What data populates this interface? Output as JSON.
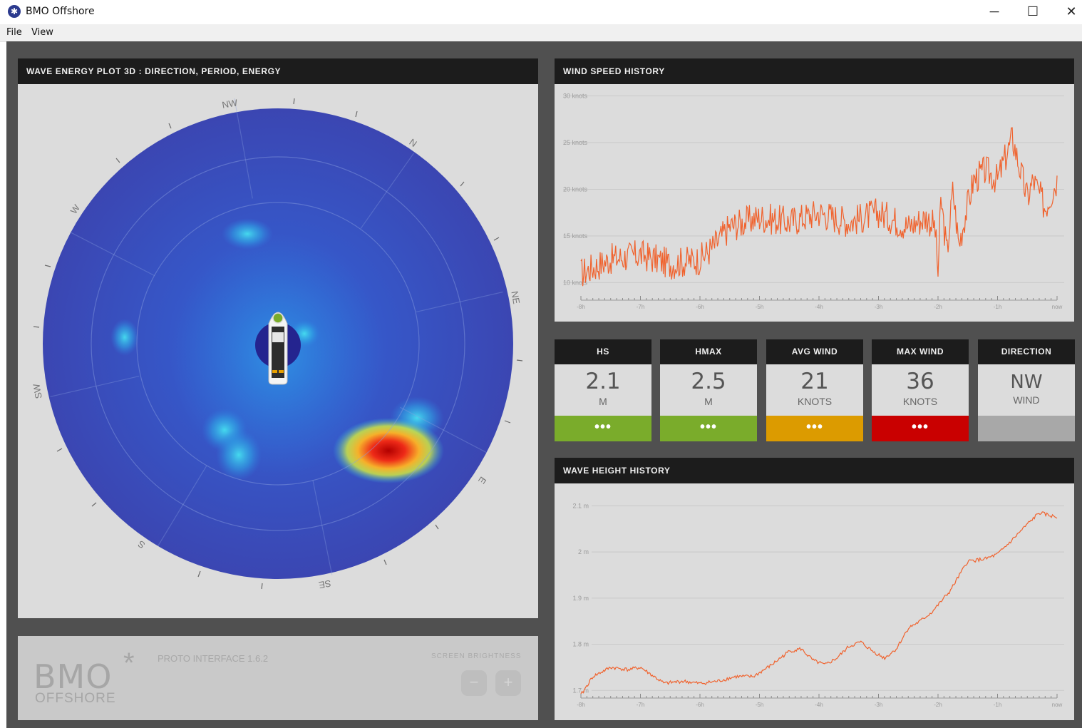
{
  "window": {
    "title": "BMO Offshore",
    "minimize_glyph": "─",
    "maximize_glyph": "☐",
    "close_glyph": "✕",
    "icon": "app-logo-icon"
  },
  "menu": {
    "items": [
      "File",
      "View"
    ]
  },
  "wave_energy": {
    "title": "WAVE ENERGY PLOT 3D : DIRECTION, PERIOD, ENERGY",
    "compass": [
      "NW",
      "N",
      "NE",
      "E",
      "SE",
      "S",
      "SW",
      "W"
    ]
  },
  "wind_speed": {
    "title": "WIND SPEED HISTORY",
    "ylabels": [
      "30 knots",
      "25 knots",
      "20 knots",
      "15 knots",
      "10 knots"
    ],
    "xlabels": [
      "-8h",
      "-7h",
      "-6h",
      "-5h",
      "-4h",
      "-3h",
      "-2h",
      "-1h",
      "now"
    ],
    "line_color": "#f0622d"
  },
  "stats": [
    {
      "label": "HS",
      "value": "2.1",
      "unit": "M",
      "dots": "•••",
      "color": "#7aac2b"
    },
    {
      "label": "HMAX",
      "value": "2.5",
      "unit": "M",
      "dots": "•••",
      "color": "#7aac2b"
    },
    {
      "label": "AVG WIND",
      "value": "21",
      "unit": "KNOTS",
      "dots": "•••",
      "color": "#dc9b00"
    },
    {
      "label": "MAX WIND",
      "value": "36",
      "unit": "KNOTS",
      "dots": "•••",
      "color": "#c90000"
    },
    {
      "label": "DIRECTION",
      "value": "NW",
      "unit": "WIND",
      "dots": "",
      "color": "#a8a8a8"
    }
  ],
  "wave_height": {
    "title": "WAVE HEIGHT HISTORY",
    "ylabels": [
      "2.1 m",
      "2 m",
      "1.9 m",
      "1.8 m",
      "1.7 m"
    ],
    "xlabels": [
      "-8h",
      "-7h",
      "-6h",
      "-5h",
      "-4h",
      "-3h",
      "-2h",
      "-1h",
      "now"
    ]
  },
  "footer": {
    "logo_top": "BMO",
    "logo_star": "*",
    "logo_bottom": "OFFSHORE",
    "version": "PROTO INTERFACE 1.6.2",
    "brightness_label": "SCREEN BRIGHTNESS",
    "minus": "−",
    "plus": "+"
  },
  "chart_data": [
    {
      "type": "line",
      "title": "WIND SPEED HISTORY",
      "x": [
        -8,
        -7.5,
        -7,
        -6.5,
        -6,
        -5.75,
        -5.5,
        -5,
        -4.5,
        -4,
        -3.5,
        -3,
        -2.5,
        -2.2,
        -2.05,
        -2,
        -1.95,
        -1.85,
        -1.75,
        -1.65,
        -1.55,
        -1.4,
        -1.2,
        -1,
        -0.75,
        -0.5,
        -0.4,
        -0.2,
        0
      ],
      "values": [
        11,
        12.5,
        13,
        12,
        12.5,
        14,
        16,
        17,
        16.5,
        17.5,
        16.5,
        17.5,
        16,
        17,
        16,
        11,
        19,
        13,
        20,
        14,
        17,
        21,
        22,
        21,
        25.5,
        19,
        21,
        18,
        21
      ],
      "xlabel": "",
      "ylabel": "",
      "ylim": [
        8.5,
        30.5
      ]
    },
    {
      "type": "line",
      "title": "WAVE HEIGHT HISTORY",
      "x": [
        -8,
        -7.8,
        -7.5,
        -7.2,
        -7,
        -6.6,
        -6.3,
        -6,
        -5.7,
        -5.4,
        -5.1,
        -4.8,
        -4.5,
        -4.3,
        -4.1,
        -3.9,
        -3.7,
        -3.5,
        -3.3,
        -3.1,
        -2.9,
        -2.7,
        -2.5,
        -2.3,
        -2.1,
        -1.8,
        -1.5,
        -1.2,
        -1,
        -0.8,
        -0.5,
        -0.3,
        0
      ],
      "values": [
        1.69,
        1.73,
        1.75,
        1.745,
        1.75,
        1.715,
        1.72,
        1.715,
        1.72,
        1.73,
        1.73,
        1.755,
        1.785,
        1.79,
        1.765,
        1.755,
        1.77,
        1.795,
        1.805,
        1.785,
        1.77,
        1.79,
        1.835,
        1.85,
        1.87,
        1.915,
        1.98,
        1.985,
        1.995,
        2.02,
        2.06,
        2.085,
        2.075
      ],
      "xlabel": "",
      "ylabel": "",
      "ylim": [
        1.685,
        2.13
      ]
    }
  ]
}
